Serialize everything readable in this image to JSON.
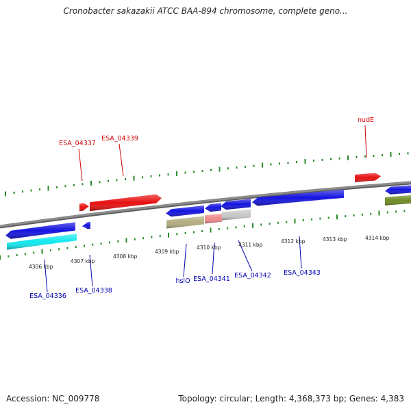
{
  "title": "Cronobacter sakazakii ATCC BAA-894 chromosome, complete geno...",
  "footer": {
    "accession": "Accession: NC_009778",
    "summary": "Topology: circular; Length: 4,368,373 bp; Genes: 4,383"
  },
  "colors": {
    "backbone": "#8c8c8c",
    "tick": "#2a8a2a",
    "forward_label": "#d00000",
    "reverse_label": "#0000b0",
    "blue_gene": "#1414e0",
    "red_gene": "#e81010",
    "cyan_gene": "#12e8ee",
    "olive_gene": "#b3ad7e",
    "pink_gene": "#f08a8a",
    "grey_gene": "#c8c8c8",
    "green_gene": "#6e8c22"
  },
  "scale_labels": [
    "4306 kbp",
    "4307 kbp",
    "4308 kbp",
    "4309 kbp",
    "4310 kbp",
    "4311 kbp",
    "4312 kbp",
    "4313 kbp",
    "4314 kbp"
  ],
  "forward_gene_labels": [
    "ESA_04337",
    "ESA_04339",
    "nudE"
  ],
  "reverse_gene_labels": [
    "ESA_04336",
    "ESA_04338",
    "hslO",
    "ESA_04341",
    "ESA_04342",
    "ESA_04343"
  ]
}
